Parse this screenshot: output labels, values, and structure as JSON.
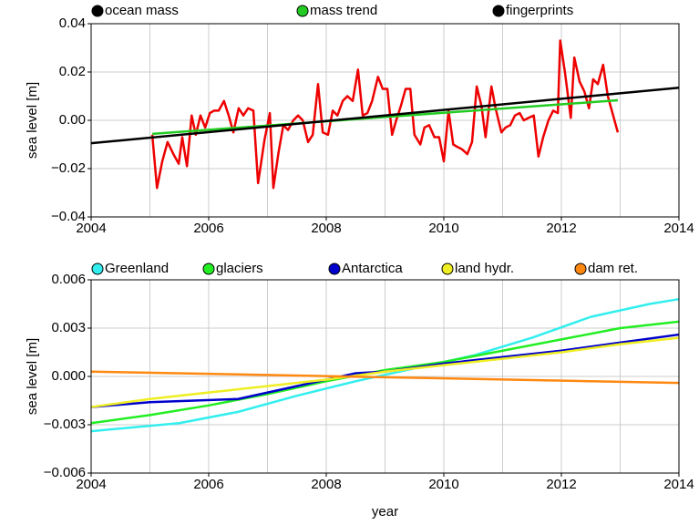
{
  "chart_data": [
    {
      "type": "line",
      "ylabel": "sea level [m]",
      "xlim": [
        2004,
        2014
      ],
      "xticks": [
        2004,
        2006,
        2008,
        2010,
        2012,
        2014
      ],
      "minor_xticks": [
        2005,
        2007,
        2009,
        2011,
        2013
      ],
      "ylim": [
        -0.04,
        0.04
      ],
      "yticks": [
        {
          "value": -0.04,
          "label": "−0.04"
        },
        {
          "value": -0.02,
          "label": "−0.02"
        },
        {
          "value": 0,
          "label": "0.00"
        },
        0.02,
        0.04
      ],
      "grid": true,
      "series": [
        {
          "name": "ocean mass",
          "color": "#ee0000",
          "legend_color": "#000000",
          "x": [
            2005.04,
            2005.12,
            2005.21,
            2005.3,
            2005.4,
            2005.49,
            2005.55,
            2005.63,
            2005.71,
            2005.78,
            2005.86,
            2005.94,
            2006.02,
            2006.09,
            2006.17,
            2006.26,
            2006.34,
            2006.42,
            2006.51,
            2006.59,
            2006.67,
            2006.76,
            2006.84,
            2006.95,
            2007.04,
            2007.1,
            2007.19,
            2007.27,
            2007.35,
            2007.44,
            2007.52,
            2007.6,
            2007.69,
            2007.77,
            2007.86,
            2007.94,
            2008.03,
            2008.11,
            2008.19,
            2008.28,
            2008.36,
            2008.45,
            2008.54,
            2008.62,
            2008.7,
            2008.78,
            2008.88,
            2008.96,
            2009.04,
            2009.12,
            2009.19,
            2009.27,
            2009.35,
            2009.43,
            2009.5,
            2009.6,
            2009.67,
            2009.75,
            2009.84,
            2009.92,
            2010.0,
            2010.08,
            2010.16,
            2010.23,
            2010.31,
            2010.4,
            2010.48,
            2010.56,
            2010.64,
            2010.71,
            2010.81,
            2010.88,
            2010.98,
            2011.05,
            2011.13,
            2011.21,
            2011.29,
            2011.36,
            2011.44,
            2011.53,
            2011.61,
            2011.69,
            2011.78,
            2011.86,
            2011.94,
            2011.98,
            2012.06,
            2012.16,
            2012.22,
            2012.31,
            2012.39,
            2012.47,
            2012.54,
            2012.62,
            2012.71,
            2012.79,
            2012.96
          ],
          "values": [
            -0.006,
            -0.028,
            -0.017,
            -0.009,
            -0.014,
            -0.018,
            -0.007,
            -0.019,
            0.002,
            -0.006,
            0.002,
            -0.003,
            0.003,
            0.004,
            0.004,
            0.008,
            0.002,
            -0.005,
            0.005,
            0.002,
            0.005,
            0.004,
            -0.026,
            -0.008,
            0.003,
            -0.028,
            -0.013,
            -0.002,
            -0.004,
            0.0,
            0.002,
            0.0,
            -0.009,
            -0.006,
            0.015,
            -0.005,
            -0.006,
            0.004,
            0.002,
            0.008,
            0.01,
            0.008,
            0.021,
            0.002,
            0.003,
            0.008,
            0.018,
            0.013,
            0.013,
            -0.006,
            0.0,
            0.006,
            0.013,
            0.013,
            -0.006,
            -0.01,
            -0.003,
            -0.002,
            -0.007,
            -0.007,
            -0.017,
            0.004,
            -0.01,
            -0.011,
            -0.012,
            -0.014,
            -0.009,
            0.014,
            0.006,
            -0.007,
            0.014,
            0.005,
            -0.005,
            -0.003,
            -0.002,
            0.002,
            0.003,
            0.0,
            0.001,
            0.002,
            -0.015,
            -0.007,
            0.0,
            0.004,
            0.003,
            0.033,
            0.02,
            0.001,
            0.026,
            0.016,
            0.012,
            0.005,
            0.017,
            0.015,
            0.023,
            0.01,
            -0.005
          ]
        },
        {
          "name": "mass trend",
          "color": "#22cc22",
          "x": [
            2005.04,
            2012.96
          ],
          "values": [
            -0.0056,
            0.0083
          ]
        },
        {
          "name": "fingerprints",
          "color": "#000000",
          "x": [
            2004,
            2014
          ],
          "values": [
            -0.0095,
            0.0135
          ]
        }
      ]
    },
    {
      "type": "line",
      "xlabel": "year",
      "ylabel": "sea level [m]",
      "xlim": [
        2004,
        2014
      ],
      "xticks": [
        2004,
        2006,
        2008,
        2010,
        2012,
        2014
      ],
      "minor_xticks": [
        2005,
        2007,
        2009,
        2011,
        2013
      ],
      "ylim": [
        -0.006,
        0.006
      ],
      "yticks": [
        {
          "value": -0.006,
          "label": "−0.006"
        },
        {
          "value": -0.003,
          "label": "−0.003"
        },
        {
          "value": 0,
          "label": "0.000"
        },
        0.003,
        0.006
      ],
      "grid": true,
      "series": [
        {
          "name": "Greenland",
          "color": "#33eeee",
          "x": [
            2004,
            2005.5,
            2006.5,
            2007.5,
            2008.5,
            2009.5,
            2010.5,
            2011.5,
            2012.5,
            2013.5,
            2014
          ],
          "values": [
            -0.0034,
            -0.0029,
            -0.0022,
            -0.0012,
            -0.0003,
            0.0005,
            0.0013,
            0.0024,
            0.0037,
            0.0045,
            0.0048
          ]
        },
        {
          "name": "glaciers",
          "color": "#22ee22",
          "x": [
            2004,
            2005,
            2006,
            2007,
            2008,
            2009,
            2010,
            2011,
            2012,
            2013,
            2014
          ],
          "values": [
            -0.0029,
            -0.0024,
            -0.0018,
            -0.0011,
            -0.0003,
            0.0004,
            0.0009,
            0.0016,
            0.0023,
            0.003,
            0.0034
          ]
        },
        {
          "name": "Antarctica",
          "color": "#0000cc",
          "x": [
            2004,
            2005,
            2006.5,
            2007.5,
            2008.5,
            2009,
            2010,
            2011,
            2012,
            2013,
            2014
          ],
          "values": [
            -0.0019,
            -0.0016,
            -0.0014,
            -0.0006,
            0.0002,
            0.0003,
            0.0008,
            0.0012,
            0.0016,
            0.0021,
            0.0026
          ]
        },
        {
          "name": "land hydr.",
          "color": "#eeee22",
          "x": [
            2004,
            2005,
            2006,
            2007,
            2008,
            2009,
            2010,
            2011,
            2012,
            2013,
            2014
          ],
          "values": [
            -0.0019,
            -0.0014,
            -0.001,
            -0.0006,
            -0.0002,
            0.0003,
            0.0007,
            0.0011,
            0.0015,
            0.002,
            0.0024
          ]
        },
        {
          "name": "dam ret.",
          "color": "#ff8811",
          "x": [
            2004,
            2014
          ],
          "values": [
            0.0003,
            -0.0004
          ]
        }
      ]
    }
  ]
}
